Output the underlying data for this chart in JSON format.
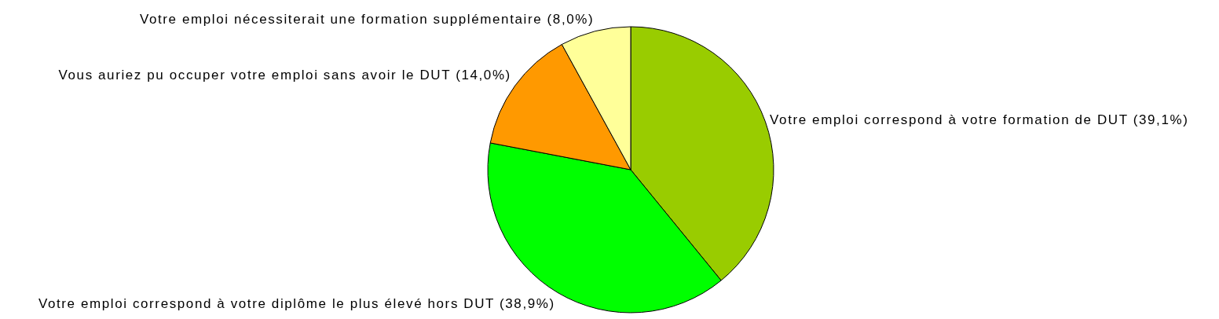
{
  "chart_data": {
    "type": "pie",
    "categories": [
      "Votre emploi correspond à votre formation de DUT",
      "Votre emploi correspond à votre diplôme le plus élevé hors DUT",
      "Vous auriez pu occuper votre emploi sans avoir le DUT",
      "Votre emploi nécessiterait une formation supplémentaire"
    ],
    "values": [
      39.1,
      38.9,
      14.0,
      8.0
    ],
    "value_labels": [
      "(39,1%)",
      "(38,9%)",
      "(14,0%)",
      "(8,0%)"
    ],
    "colors": [
      "#99cc00",
      "#00ff00",
      "#ff9900",
      "#ffff99"
    ],
    "legend": false
  }
}
